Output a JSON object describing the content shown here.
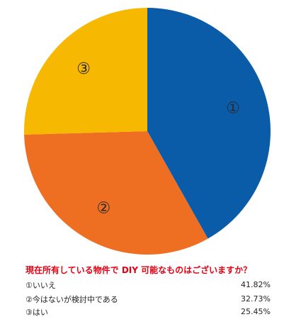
{
  "chart_data": {
    "type": "pie",
    "title": "現在所有している物件で DIY 可能なものはございますか？",
    "slices": [
      {
        "marker": "①",
        "label": "いいえ",
        "value": 41.82,
        "value_text": "41.82%",
        "color": "#0b5ca8"
      },
      {
        "marker": "②",
        "label": "今はないが検討中である",
        "value": 32.73,
        "value_text": "32.73%",
        "color": "#ee6e22"
      },
      {
        "marker": "③",
        "label": "はい",
        "value": 25.45,
        "value_text": "25.45%",
        "color": "#f6b800"
      }
    ],
    "start": "12 o'clock",
    "direction": "clockwise",
    "legend_position": "bottom"
  },
  "colors": {
    "title": "#e60012",
    "label_text": "#2b2b2b"
  }
}
